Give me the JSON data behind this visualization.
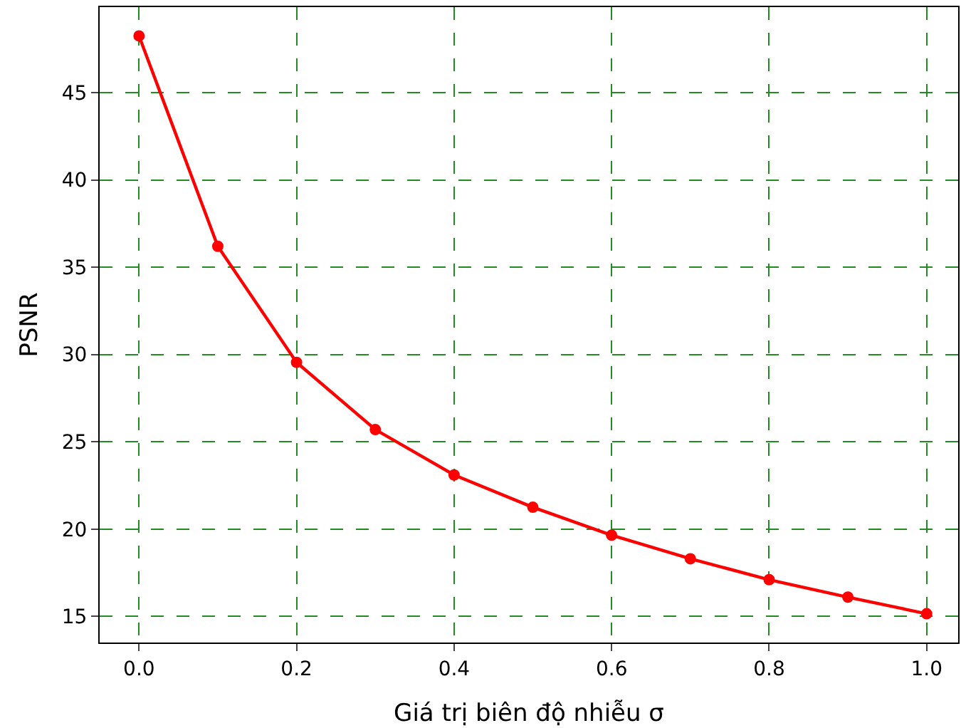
{
  "chart_data": {
    "type": "line",
    "xlabel": "Giá trị biên độ nhiễu σ",
    "ylabel": "PSNR",
    "x": [
      0.0,
      0.1,
      0.2,
      0.3,
      0.4,
      0.5,
      0.6,
      0.7,
      0.8,
      0.9,
      1.0
    ],
    "series": [
      {
        "color": "#ff0000",
        "values": [
          48.25,
          36.2,
          29.55,
          25.7,
          23.1,
          21.25,
          19.65,
          18.3,
          17.1,
          16.1,
          15.15
        ]
      }
    ],
    "xlim": [
      -0.05,
      1.04
    ],
    "xticks": [
      {
        "value": 0,
        "label": "0.0"
      },
      {
        "value": 0.2,
        "label": "0.2"
      },
      {
        "value": 0.4,
        "label": "0.4"
      },
      {
        "value": 0.6,
        "label": "0.6"
      },
      {
        "value": 0.8,
        "label": "0.8"
      },
      {
        "value": 1,
        "label": "1.0"
      }
    ],
    "ylim": [
      13.5,
      49.9
    ],
    "yticks": [
      15,
      20,
      25,
      30,
      35,
      40,
      45
    ],
    "grid": true,
    "marker": "circle",
    "line_style": "solid",
    "legend": false
  }
}
